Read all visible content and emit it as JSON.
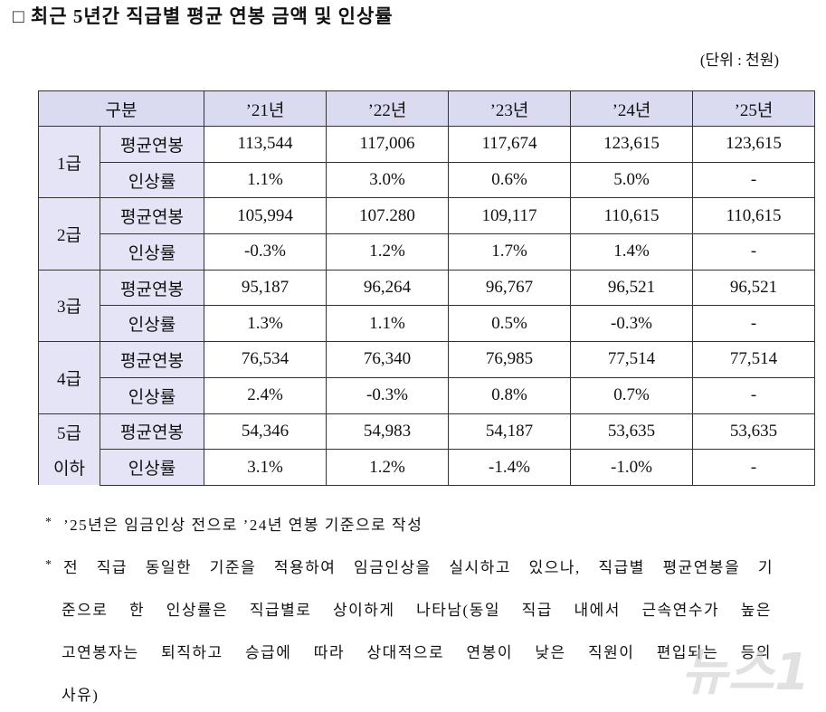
{
  "title": "□ 최근 5년간 직급별 평균 연봉 금액 및 인상률",
  "unit": "(단위 : 천원)",
  "table": {
    "header": [
      "구분",
      "’21년",
      "’22년",
      "’23년",
      "’24년",
      "’25년"
    ],
    "groups": [
      {
        "grade": [
          "1급"
        ],
        "rows": [
          {
            "label": "평균연봉",
            "values": [
              "113,544",
              "117,006",
              "117,674",
              "123,615",
              "123,615"
            ]
          },
          {
            "label": "인상률",
            "values": [
              "1.1%",
              "3.0%",
              "0.6%",
              "5.0%",
              "-"
            ]
          }
        ]
      },
      {
        "grade": [
          "2급"
        ],
        "rows": [
          {
            "label": "평균연봉",
            "values": [
              "105,994",
              "107.280",
              "109,117",
              "110,615",
              "110,615"
            ]
          },
          {
            "label": "인상률",
            "values": [
              "-0.3%",
              "1.2%",
              "1.7%",
              "1.4%",
              "-"
            ]
          }
        ]
      },
      {
        "grade": [
          "3급"
        ],
        "rows": [
          {
            "label": "평균연봉",
            "values": [
              "95,187",
              "96,264",
              "96,767",
              "96,521",
              "96,521"
            ]
          },
          {
            "label": "인상률",
            "values": [
              "1.3%",
              "1.1%",
              "0.5%",
              "-0.3%",
              "-"
            ]
          }
        ]
      },
      {
        "grade": [
          "4급"
        ],
        "rows": [
          {
            "label": "평균연봉",
            "values": [
              "76,534",
              "76,340",
              "76,985",
              "77,514",
              "77,514"
            ]
          },
          {
            "label": "인상률",
            "values": [
              "2.4%",
              "-0.3%",
              "0.8%",
              "0.7%",
              "-"
            ]
          }
        ]
      },
      {
        "grade": [
          "5급",
          "이하"
        ],
        "rows": [
          {
            "label": "평균연봉",
            "values": [
              "54,346",
              "54,983",
              "54,187",
              "53,635",
              "53,635"
            ]
          },
          {
            "label": "인상률",
            "values": [
              "3.1%",
              "1.2%",
              "-1.4%",
              "-1.0%",
              "-"
            ]
          }
        ]
      }
    ]
  },
  "notes": [
    {
      "marker": "*",
      "lines": [
        "’25년은 임금인상 전으로 ’24년 연봉 기준으로 작성"
      ]
    },
    {
      "marker": "*",
      "lines": [
        "전 직급 동일한 기준을 적용하여 임금인상을 실시하고 있으나, 직급별 평균연봉을 기",
        "준으로 한 인상률은 직급별로 상이하게 나타남(동일 직급 내에서 근속연수가 높은",
        "고연봉자는 퇴직하고 승급에 따라 상대적으로 연봉이 낮은 직원이 편입되는 등의",
        "사유)"
      ]
    }
  ],
  "watermark": "뉴스1"
}
